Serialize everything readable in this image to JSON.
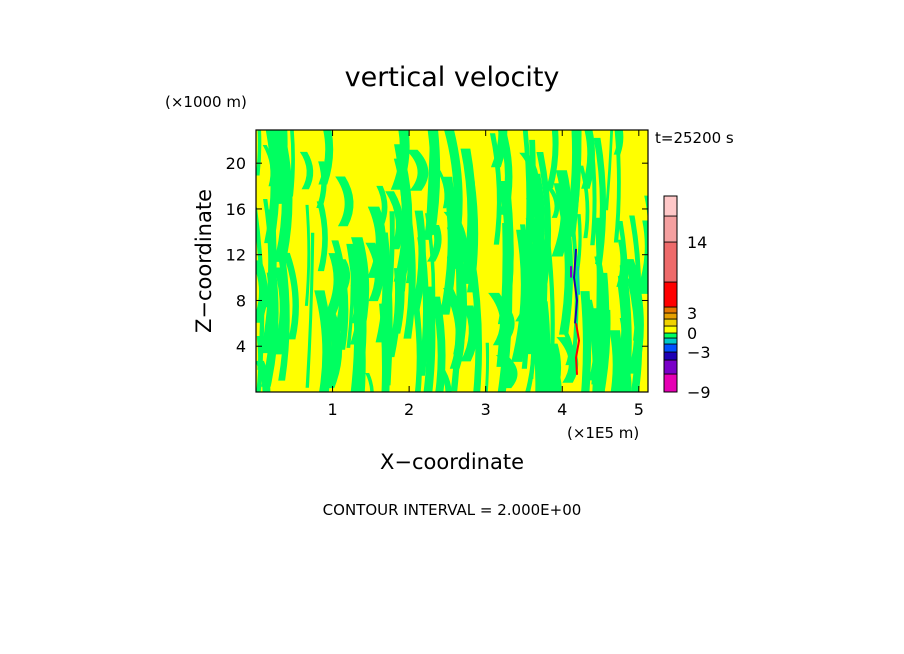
{
  "chart_data": {
    "type": "heatmap",
    "title": "vertical velocity",
    "xlabel": "X−coordinate",
    "ylabel": "Z−coordinate",
    "x_unit": "(×1E5 m)",
    "y_unit": "(×1000 m)",
    "time_label": "t=25200 s",
    "footer": "CONTOUR INTERVAL = 2.000E+00",
    "xlim": [
      0,
      5.12
    ],
    "ylim": [
      0,
      22.9
    ],
    "x_ticks": [
      1,
      2,
      3,
      4,
      5
    ],
    "x_tick_labels": [
      "1",
      "2",
      "3",
      "4",
      "5"
    ],
    "y_ticks": [
      4,
      8,
      12,
      16,
      20
    ],
    "y_tick_labels": [
      "4",
      "8",
      "12",
      "16",
      "20"
    ],
    "contour_interval": 2.0,
    "field_note_colors": {
      "dominant_positive": "#ffff00",
      "dominant_negative": "#00ff60"
    },
    "colorbar": {
      "levels": [
        {
          "lo": -9,
          "hi": -7,
          "color": "#e600b4"
        },
        {
          "lo": -7,
          "hi": -5,
          "color": "#7a00c8"
        },
        {
          "lo": -5,
          "hi": -3,
          "color": "#1e00b4"
        },
        {
          "lo": -3,
          "hi": -2,
          "color": "#0050ff"
        },
        {
          "lo": -2,
          "hi": -1,
          "color": "#00c8c8"
        },
        {
          "lo": -1,
          "hi": 0,
          "color": "#00ff60"
        },
        {
          "lo": 0,
          "hi": 1,
          "color": "#ffff00"
        },
        {
          "lo": 1,
          "hi": 2,
          "color": "#f0d200"
        },
        {
          "lo": 2,
          "hi": 3,
          "color": "#e6a000"
        },
        {
          "lo": 3,
          "hi": 5,
          "color": "#e67800"
        },
        {
          "lo": 5,
          "hi": 9,
          "color": "#ff0000"
        },
        {
          "lo": 9,
          "hi": 14,
          "color": "#ee6a6a"
        },
        {
          "lo": 14,
          "hi": 17,
          "color": "#f5a0a0"
        },
        {
          "lo": 17,
          "hi": 20,
          "color": "#ffc8c8"
        }
      ],
      "tick_labels": [
        "14",
        "3",
        "0",
        "−3",
        "−9"
      ],
      "tick_values": [
        14,
        3,
        0,
        -3,
        -9
      ]
    },
    "updraft_feature": {
      "x": 4.18,
      "z_range": [
        1.5,
        12.5
      ]
    }
  }
}
